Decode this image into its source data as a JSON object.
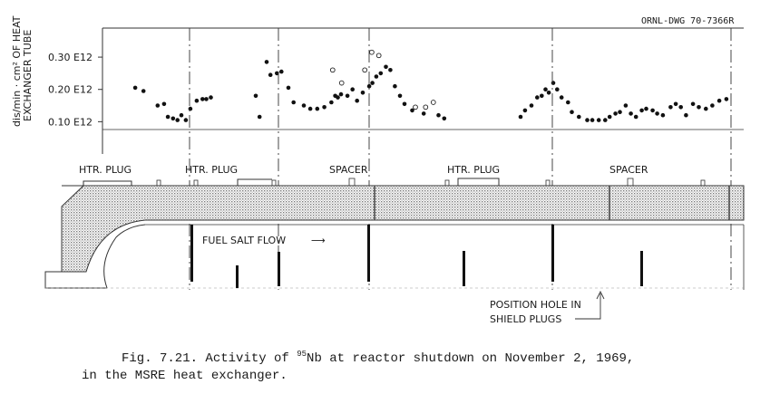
{
  "drawing_number": "ORNL-DWG 70-7366R",
  "caption": {
    "prefix": "Fig. 7.21.  Activity of ",
    "isotope_mass": "95",
    "middle": "Nb at reactor shutdown on November 2, 1969,",
    "line2": "in the MSRE heat exchanger."
  },
  "diagram": {
    "labels": [
      "HTR. PLUG",
      "HTR. PLUG",
      "SPACER",
      "HTR. PLUG",
      "SPACER"
    ],
    "flow_label": "FUEL SALT FLOW",
    "flow_arrow": "⟶",
    "position_hole_line1": "POSITION HOLE IN",
    "position_hole_line2": "SHIELD PLUGS"
  },
  "chart_data": {
    "type": "scatter",
    "title": "",
    "ylabel_line1": "dis/min · cm² OF HEAT",
    "ylabel_line2": "EXCHANGER TUBE",
    "xlabel": "",
    "yticks": [
      {
        "value": 0.3,
        "label": "0.30  E12"
      },
      {
        "value": 0.2,
        "label": "0.20  E12"
      },
      {
        "value": 0.1,
        "label": "0.10  E12"
      }
    ],
    "ylim": [
      0.0,
      0.39
    ],
    "xlim": [
      0,
      100
    ],
    "grid": false,
    "series": [
      {
        "marker": "filled",
        "x": [
          5.1,
          6.4,
          8.6,
          9.6,
          10.2,
          11.0,
          11.7,
          12.3,
          13.0,
          13.7,
          14.7,
          15.6,
          16.2,
          16.9,
          23.9,
          24.5,
          25.6,
          26.2,
          27.2,
          27.9,
          29.0,
          29.8,
          31.4,
          32.4,
          33.5,
          34.6,
          35.7,
          36.3,
          36.7,
          37.2,
          38.2,
          39.0,
          39.7,
          40.6,
          41.6,
          42.1,
          42.7,
          43.4,
          44.2,
          44.9,
          45.6,
          46.4,
          47.1,
          48.3,
          50.1,
          52.4,
          53.3,
          65.2,
          65.9,
          66.9,
          67.8,
          68.5,
          69.1,
          69.6,
          70.3,
          70.9,
          71.6,
          72.6,
          73.2,
          74.3,
          75.6,
          76.4,
          77.4,
          78.4,
          79.1,
          80.0,
          80.7,
          81.6,
          82.4,
          83.2,
          84.1,
          84.8,
          85.8,
          86.5,
          87.4,
          88.6,
          89.4,
          90.2,
          91.0,
          92.1,
          93.0,
          94.1,
          95.1,
          96.2,
          97.3
        ],
        "y": [
          0.205,
          0.195,
          0.15,
          0.155,
          0.115,
          0.11,
          0.105,
          0.12,
          0.105,
          0.14,
          0.165,
          0.17,
          0.17,
          0.175,
          0.18,
          0.115,
          0.285,
          0.245,
          0.25,
          0.255,
          0.205,
          0.16,
          0.15,
          0.14,
          0.14,
          0.145,
          0.16,
          0.18,
          0.175,
          0.185,
          0.18,
          0.2,
          0.165,
          0.19,
          0.21,
          0.22,
          0.24,
          0.25,
          0.27,
          0.26,
          0.21,
          0.18,
          0.155,
          0.135,
          0.125,
          0.12,
          0.11,
          0.115,
          0.135,
          0.15,
          0.175,
          0.18,
          0.2,
          0.19,
          0.22,
          0.2,
          0.175,
          0.16,
          0.13,
          0.115,
          0.105,
          0.105,
          0.105,
          0.105,
          0.115,
          0.125,
          0.13,
          0.15,
          0.125,
          0.115,
          0.135,
          0.14,
          0.135,
          0.125,
          0.12,
          0.145,
          0.155,
          0.145,
          0.12,
          0.155,
          0.145,
          0.14,
          0.15,
          0.165,
          0.17
        ]
      },
      {
        "marker": "open",
        "x": [
          35.9,
          37.3,
          40.9,
          42.0,
          43.1,
          48.8,
          50.4,
          51.6
        ],
        "y": [
          0.26,
          0.22,
          0.26,
          0.315,
          0.305,
          0.145,
          0.145,
          0.16
        ]
      }
    ]
  }
}
